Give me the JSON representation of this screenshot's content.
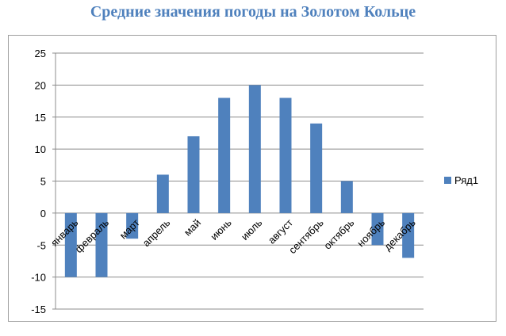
{
  "title": "Средние значения погоды на Золотом Кольце",
  "chart_data": {
    "type": "bar",
    "title": "Средние значения погоды на Золотом Кольце",
    "categories": [
      "январь",
      "февраль",
      "март",
      "апрель",
      "май",
      "июнь",
      "июль",
      "август",
      "сентябрь",
      "октябрь",
      "ноябрь",
      "декабрь"
    ],
    "series": [
      {
        "name": "Ряд1",
        "values": [
          -10,
          -10,
          -4,
          6,
          12,
          18,
          20,
          18,
          14,
          5,
          -5,
          -7
        ],
        "color": "#4f81bd"
      }
    ],
    "ylim": [
      -15,
      25
    ],
    "yticks": [
      25,
      20,
      15,
      10,
      5,
      0,
      -5,
      -10,
      -15
    ],
    "grid": true,
    "legend": "right"
  }
}
